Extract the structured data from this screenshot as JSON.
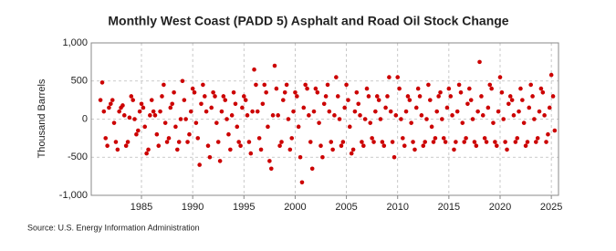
{
  "chart_data": {
    "type": "scatter",
    "title": "Monthly West Coast (PADD 5) Asphalt and Road Oil Stock Change",
    "y_label": "Thousand Barrels",
    "source": "Source: U.S. Energy Information Administration",
    "color": "#cc0000",
    "grid": true,
    "xlim": [
      1980.1,
      2025.7
    ],
    "xticks": [
      1985,
      1990,
      1995,
      2000,
      2005,
      2010,
      2015,
      2020,
      2025
    ],
    "ylim": [
      -1000,
      1000
    ],
    "yticks": [
      {
        "value": 1000,
        "label": "1,000"
      },
      500,
      0,
      -500,
      {
        "value": -1000,
        "label": "-1,000"
      }
    ],
    "x": [
      1981,
      1981.17,
      1981.33,
      1981.5,
      1981.67,
      1981.83,
      1982,
      1982.17,
      1982.33,
      1982.5,
      1982.67,
      1982.83,
      1983,
      1983.17,
      1983.33,
      1983.5,
      1983.67,
      1983.83,
      1984,
      1984.17,
      1984.33,
      1984.5,
      1984.67,
      1984.83,
      1985,
      1985.17,
      1985.33,
      1985.5,
      1985.67,
      1985.83,
      1986,
      1986.17,
      1986.33,
      1986.5,
      1986.67,
      1986.83,
      1987,
      1987.17,
      1987.33,
      1987.5,
      1987.67,
      1987.83,
      1988,
      1988.17,
      1988.33,
      1988.5,
      1988.67,
      1988.83,
      1989,
      1989.17,
      1989.33,
      1989.5,
      1989.67,
      1989.83,
      1990,
      1990.17,
      1990.33,
      1990.5,
      1990.67,
      1990.83,
      1991,
      1991.17,
      1991.33,
      1991.5,
      1991.67,
      1991.83,
      1992,
      1992.17,
      1992.33,
      1992.5,
      1992.67,
      1992.83,
      1993,
      1993.17,
      1993.33,
      1993.5,
      1993.67,
      1993.83,
      1994,
      1994.17,
      1994.33,
      1994.5,
      1994.67,
      1994.83,
      1995,
      1995.17,
      1995.33,
      1995.5,
      1995.67,
      1995.83,
      1996,
      1996.17,
      1996.33,
      1996.5,
      1996.67,
      1996.83,
      1997,
      1997.17,
      1997.33,
      1997.5,
      1997.67,
      1997.83,
      1998,
      1998.17,
      1998.33,
      1998.5,
      1998.67,
      1998.83,
      1999,
      1999.17,
      1999.33,
      1999.5,
      1999.67,
      1999.83,
      2000,
      2000.17,
      2000.33,
      2000.5,
      2000.67,
      2000.83,
      2001,
      2001.17,
      2001.33,
      2001.5,
      2001.67,
      2001.83,
      2002,
      2002.17,
      2002.33,
      2002.5,
      2002.67,
      2002.83,
      2003,
      2003.17,
      2003.33,
      2003.5,
      2003.67,
      2003.83,
      2004,
      2004.17,
      2004.33,
      2004.5,
      2004.67,
      2004.83,
      2005,
      2005.17,
      2005.33,
      2005.5,
      2005.67,
      2005.83,
      2006,
      2006.17,
      2006.33,
      2006.5,
      2006.67,
      2006.83,
      2007,
      2007.17,
      2007.33,
      2007.5,
      2007.67,
      2007.83,
      2008,
      2008.17,
      2008.33,
      2008.5,
      2008.67,
      2008.83,
      2009,
      2009.17,
      2009.33,
      2009.5,
      2009.67,
      2009.83,
      2010,
      2010.17,
      2010.33,
      2010.5,
      2010.67,
      2010.83,
      2011,
      2011.17,
      2011.33,
      2011.5,
      2011.67,
      2011.83,
      2012,
      2012.17,
      2012.33,
      2012.5,
      2012.67,
      2012.83,
      2013,
      2013.17,
      2013.33,
      2013.5,
      2013.67,
      2013.83,
      2014,
      2014.17,
      2014.33,
      2014.5,
      2014.67,
      2014.83,
      2015,
      2015.17,
      2015.33,
      2015.5,
      2015.67,
      2015.83,
      2016,
      2016.17,
      2016.33,
      2016.5,
      2016.67,
      2016.83,
      2017,
      2017.17,
      2017.33,
      2017.5,
      2017.67,
      2017.83,
      2018,
      2018.17,
      2018.33,
      2018.5,
      2018.67,
      2018.83,
      2019,
      2019.17,
      2019.33,
      2019.5,
      2019.67,
      2019.83,
      2020,
      2020.17,
      2020.33,
      2020.5,
      2020.67,
      2020.83,
      2021,
      2021.17,
      2021.33,
      2021.5,
      2021.67,
      2021.83,
      2022,
      2022.17,
      2022.33,
      2022.5,
      2022.67,
      2022.83,
      2023,
      2023.17,
      2023.33,
      2023.5,
      2023.67,
      2023.83,
      2024,
      2024.17,
      2024.33,
      2024.5,
      2024.67,
      2024.83,
      2025,
      2025.17,
      2025.33
    ],
    "values": [
      250,
      480,
      100,
      -250,
      -350,
      150,
      200,
      250,
      -50,
      -300,
      -400,
      100,
      150,
      180,
      50,
      -350,
      -300,
      20,
      300,
      250,
      0,
      -200,
      -150,
      100,
      200,
      150,
      -100,
      -450,
      -400,
      50,
      250,
      100,
      50,
      -200,
      -350,
      100,
      300,
      450,
      -50,
      -300,
      -250,
      150,
      200,
      350,
      -100,
      -400,
      -300,
      0,
      500,
      250,
      0,
      -300,
      -200,
      100,
      400,
      350,
      -50,
      -250,
      -600,
      200,
      450,
      300,
      100,
      -350,
      -500,
      150,
      350,
      300,
      -50,
      -300,
      -550,
      100,
      300,
      250,
      0,
      -200,
      -400,
      50,
      350,
      200,
      -100,
      -300,
      -350,
      150,
      300,
      250,
      50,
      -300,
      -450,
      100,
      650,
      450,
      100,
      -250,
      -400,
      200,
      450,
      350,
      -100,
      -550,
      -650,
      50,
      700,
      400,
      50,
      -350,
      -300,
      250,
      350,
      450,
      0,
      -400,
      -250,
      100,
      350,
      300,
      -100,
      -500,
      -830,
      150,
      450,
      400,
      50,
      -300,
      -650,
      100,
      400,
      350,
      -50,
      -350,
      -500,
      200,
      300,
      450,
      100,
      -300,
      -400,
      50,
      550,
      300,
      0,
      -350,
      -300,
      150,
      450,
      250,
      -100,
      -450,
      -400,
      100,
      350,
      200,
      50,
      -300,
      -350,
      0,
      400,
      300,
      -50,
      -250,
      -300,
      100,
      300,
      250,
      0,
      -300,
      -350,
      150,
      300,
      550,
      100,
      -300,
      -500,
      50,
      550,
      400,
      0,
      -250,
      -350,
      100,
      300,
      250,
      -50,
      -300,
      -400,
      150,
      400,
      300,
      50,
      -350,
      -300,
      0,
      450,
      250,
      -100,
      -300,
      -250,
      100,
      300,
      350,
      0,
      -250,
      -300,
      150,
      400,
      300,
      50,
      -400,
      -300,
      100,
      450,
      350,
      -50,
      -300,
      -250,
      200,
      400,
      250,
      0,
      -300,
      -350,
      100,
      750,
      300,
      50,
      -250,
      -300,
      150,
      450,
      400,
      -50,
      -300,
      -350,
      100,
      550,
      350,
      0,
      -300,
      -400,
      200,
      300,
      250,
      50,
      -300,
      -250,
      100,
      400,
      250,
      -50,
      -350,
      -300,
      150,
      450,
      300,
      0,
      -300,
      -250,
      100,
      400,
      350,
      50,
      -300,
      -200,
      150,
      580,
      300,
      -150
    ]
  }
}
